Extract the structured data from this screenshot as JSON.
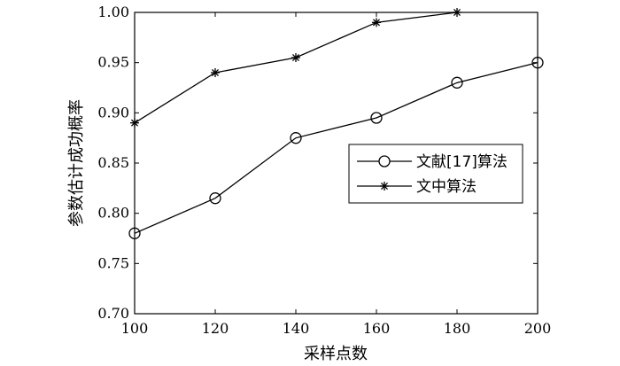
{
  "chart_data": {
    "type": "line",
    "title": "",
    "xlabel": "采样点数",
    "ylabel": "参数估计成功概率",
    "x": [
      100,
      120,
      140,
      160,
      180,
      200
    ],
    "xlim": [
      100,
      200
    ],
    "ylim": [
      0.7,
      1.0
    ],
    "xticks": [
      "100",
      "120",
      "140",
      "160",
      "180",
      "200"
    ],
    "yticks": [
      "0.70",
      "0.75",
      "0.80",
      "0.85",
      "0.90",
      "0.95",
      "1.00"
    ],
    "grid": false,
    "legend_position": "center-right",
    "series": [
      {
        "name": "文献[17]算法",
        "marker": "circle",
        "color": "#000000",
        "values": [
          0.78,
          0.815,
          0.875,
          0.895,
          0.93,
          0.95
        ]
      },
      {
        "name": "文中算法",
        "marker": "star",
        "color": "#000000",
        "values": [
          0.89,
          0.94,
          0.955,
          0.99,
          1.0,
          null
        ]
      }
    ]
  }
}
